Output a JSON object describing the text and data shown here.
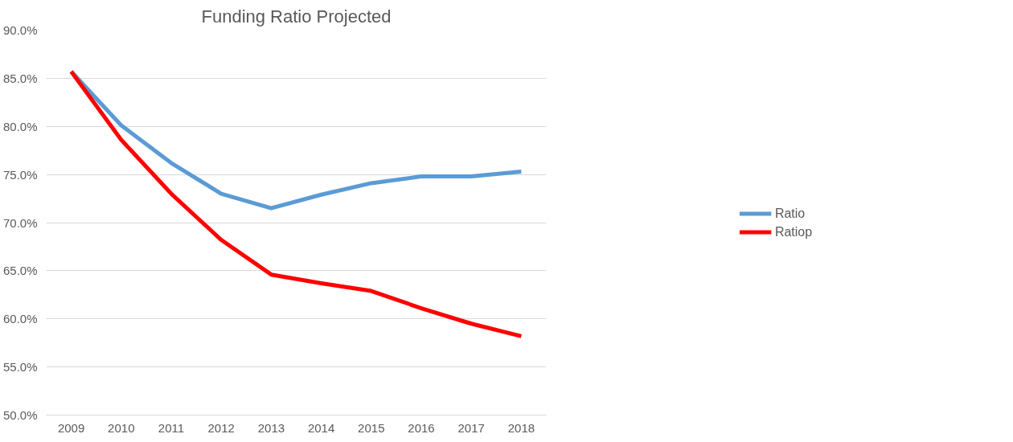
{
  "chart_data": {
    "type": "line",
    "title": "Funding Ratio Projected",
    "categories": [
      "2009",
      "2010",
      "2011",
      "2012",
      "2013",
      "2014",
      "2015",
      "2016",
      "2017",
      "2018"
    ],
    "series": [
      {
        "name": "Ratio",
        "color": "#5b9bd5",
        "values": [
          85.7,
          80.1,
          76.2,
          73.0,
          71.5,
          72.9,
          74.1,
          74.8,
          74.8,
          75.3
        ]
      },
      {
        "name": "Ratiop",
        "color": "#ff0000",
        "values": [
          85.7,
          78.6,
          73.0,
          68.2,
          64.6,
          63.7,
          62.9,
          61.1,
          59.5,
          58.2
        ]
      }
    ],
    "ylim": [
      50,
      90
    ],
    "yticks": [
      {
        "value": 50,
        "label": "50.0%"
      },
      {
        "value": 55,
        "label": "55.0%"
      },
      {
        "value": 60,
        "label": "60.0%"
      },
      {
        "value": 65,
        "label": "65.0%"
      },
      {
        "value": 70,
        "label": "70.0%"
      },
      {
        "value": 75,
        "label": "75.0%"
      },
      {
        "value": 80,
        "label": "80.0%"
      },
      {
        "value": 85,
        "label": "85.0%"
      },
      {
        "value": 90,
        "label": "90.0%"
      }
    ],
    "grid": "y",
    "legend": "right",
    "marker": "none",
    "line_style": "solid"
  }
}
